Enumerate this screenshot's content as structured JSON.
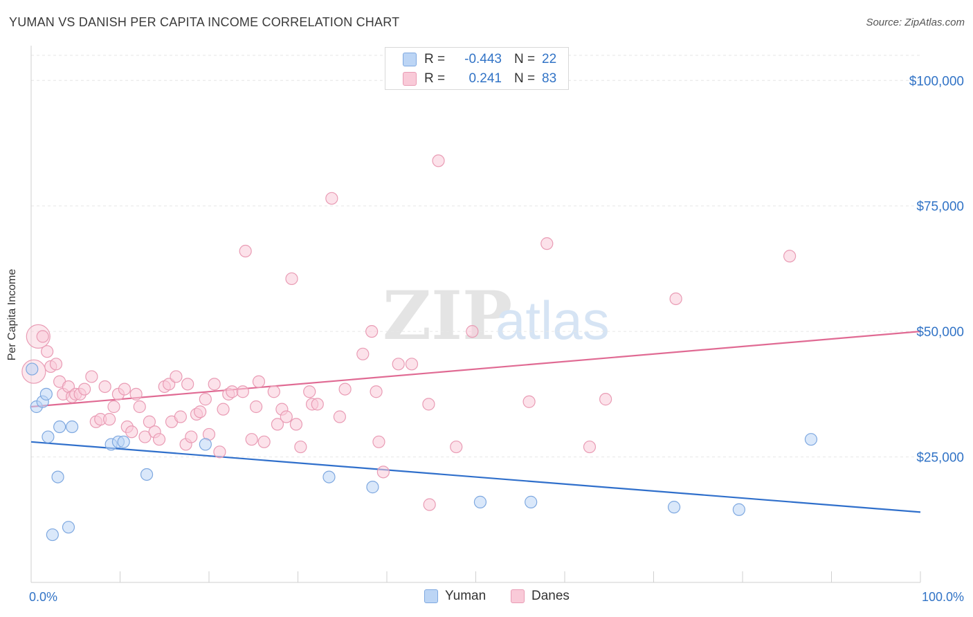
{
  "title": "YUMAN VS DANISH PER CAPITA INCOME CORRELATION CHART",
  "source": "Source: ZipAtlas.com",
  "watermark": {
    "zip": "ZIP",
    "atlas": "atlas"
  },
  "stats": [
    {
      "r_label": "R =",
      "r_value": "-0.443",
      "n_label": "N =",
      "n_value": "22",
      "color": "#bcd5f5"
    },
    {
      "r_label": "R =",
      "r_value": "0.241",
      "n_label": "N =",
      "n_value": "83",
      "color": "#f9cad8"
    }
  ],
  "legend": [
    {
      "label": "Yuman",
      "color": "#bcd5f5"
    },
    {
      "label": "Danes",
      "color": "#f9cad8"
    }
  ],
  "chart_data": {
    "type": "scatter",
    "title": "YUMAN VS DANISH PER CAPITA INCOME CORRELATION CHART",
    "xlabel": "",
    "ylabel": "Per Capita Income",
    "xlim": [
      0,
      100
    ],
    "ylim": [
      0,
      105000
    ],
    "x_tick_labels": [
      "0.0%",
      "100.0%"
    ],
    "y_ticks": [
      {
        "value": 25000,
        "label": "$25,000"
      },
      {
        "value": 50000,
        "label": "$50,000"
      },
      {
        "value": 75000,
        "label": "$75,000"
      },
      {
        "value": 100000,
        "label": "$100,000"
      }
    ],
    "grid": true,
    "legend_position": "bottom-center",
    "series": [
      {
        "name": "Yuman",
        "color": "#7ea8e0",
        "fill": "#bcd5f5",
        "trend": {
          "x": [
            0,
            100
          ],
          "y": [
            28000,
            14000
          ],
          "color": "#2f6fcb"
        },
        "points": [
          {
            "x": 0.1,
            "y": 42500
          },
          {
            "x": 0.6,
            "y": 35000
          },
          {
            "x": 1.3,
            "y": 36000
          },
          {
            "x": 1.7,
            "y": 37500
          },
          {
            "x": 1.9,
            "y": 29000
          },
          {
            "x": 2.4,
            "y": 9500
          },
          {
            "x": 3.0,
            "y": 21000
          },
          {
            "x": 3.2,
            "y": 31000
          },
          {
            "x": 4.2,
            "y": 11000
          },
          {
            "x": 4.6,
            "y": 31000
          },
          {
            "x": 9.0,
            "y": 27500
          },
          {
            "x": 9.8,
            "y": 28000
          },
          {
            "x": 10.4,
            "y": 28000
          },
          {
            "x": 13.0,
            "y": 21500
          },
          {
            "x": 19.6,
            "y": 27500
          },
          {
            "x": 33.5,
            "y": 21000
          },
          {
            "x": 38.4,
            "y": 19000
          },
          {
            "x": 50.5,
            "y": 16000
          },
          {
            "x": 56.2,
            "y": 16000
          },
          {
            "x": 72.3,
            "y": 15000
          },
          {
            "x": 79.6,
            "y": 14500
          },
          {
            "x": 87.7,
            "y": 28500
          }
        ]
      },
      {
        "name": "Danes",
        "color": "#e99bb4",
        "fill": "#f9cad8",
        "trend": {
          "x": [
            0,
            100
          ],
          "y": [
            35000,
            50000
          ],
          "color": "#e06a93"
        },
        "points": [
          {
            "x": 0.3,
            "y": 42000,
            "big": true
          },
          {
            "x": 0.8,
            "y": 49000,
            "big": true
          },
          {
            "x": 1.3,
            "y": 49000
          },
          {
            "x": 1.8,
            "y": 46000
          },
          {
            "x": 2.2,
            "y": 43000
          },
          {
            "x": 2.8,
            "y": 43500
          },
          {
            "x": 3.2,
            "y": 40000
          },
          {
            "x": 3.6,
            "y": 37500
          },
          {
            "x": 4.2,
            "y": 39000
          },
          {
            "x": 4.6,
            "y": 37000
          },
          {
            "x": 5.0,
            "y": 37500
          },
          {
            "x": 5.5,
            "y": 37500
          },
          {
            "x": 6.0,
            "y": 38500
          },
          {
            "x": 6.8,
            "y": 41000
          },
          {
            "x": 7.3,
            "y": 32000
          },
          {
            "x": 7.8,
            "y": 32500
          },
          {
            "x": 8.3,
            "y": 39000
          },
          {
            "x": 8.8,
            "y": 32500
          },
          {
            "x": 9.3,
            "y": 35000
          },
          {
            "x": 9.8,
            "y": 37500
          },
          {
            "x": 10.5,
            "y": 38500
          },
          {
            "x": 10.8,
            "y": 31000
          },
          {
            "x": 11.3,
            "y": 30000
          },
          {
            "x": 11.8,
            "y": 37500
          },
          {
            "x": 12.2,
            "y": 35000
          },
          {
            "x": 12.8,
            "y": 29000
          },
          {
            "x": 13.3,
            "y": 32000
          },
          {
            "x": 13.9,
            "y": 30000
          },
          {
            "x": 14.4,
            "y": 28500
          },
          {
            "x": 15.0,
            "y": 39000
          },
          {
            "x": 15.5,
            "y": 39500
          },
          {
            "x": 15.8,
            "y": 32000
          },
          {
            "x": 16.3,
            "y": 41000
          },
          {
            "x": 16.8,
            "y": 33000
          },
          {
            "x": 17.4,
            "y": 27500
          },
          {
            "x": 17.6,
            "y": 39500
          },
          {
            "x": 18.0,
            "y": 29000
          },
          {
            "x": 18.6,
            "y": 33500
          },
          {
            "x": 19.0,
            "y": 34000
          },
          {
            "x": 19.6,
            "y": 36500
          },
          {
            "x": 20.0,
            "y": 29500
          },
          {
            "x": 20.6,
            "y": 39500
          },
          {
            "x": 21.2,
            "y": 26000
          },
          {
            "x": 21.6,
            "y": 34500
          },
          {
            "x": 22.2,
            "y": 37500
          },
          {
            "x": 22.6,
            "y": 38000
          },
          {
            "x": 23.8,
            "y": 38000
          },
          {
            "x": 24.1,
            "y": 66000
          },
          {
            "x": 24.8,
            "y": 28500
          },
          {
            "x": 25.3,
            "y": 35000
          },
          {
            "x": 25.6,
            "y": 40000
          },
          {
            "x": 26.2,
            "y": 28000
          },
          {
            "x": 27.3,
            "y": 38000
          },
          {
            "x": 27.7,
            "y": 31500
          },
          {
            "x": 28.2,
            "y": 34500
          },
          {
            "x": 28.7,
            "y": 33000
          },
          {
            "x": 29.3,
            "y": 60500
          },
          {
            "x": 29.8,
            "y": 31500
          },
          {
            "x": 30.3,
            "y": 27000
          },
          {
            "x": 31.3,
            "y": 38000
          },
          {
            "x": 31.6,
            "y": 35500
          },
          {
            "x": 32.2,
            "y": 35500
          },
          {
            "x": 33.8,
            "y": 76500
          },
          {
            "x": 34.7,
            "y": 33000
          },
          {
            "x": 35.3,
            "y": 38500
          },
          {
            "x": 37.3,
            "y": 45500
          },
          {
            "x": 38.3,
            "y": 50000
          },
          {
            "x": 38.8,
            "y": 38000
          },
          {
            "x": 39.1,
            "y": 28000
          },
          {
            "x": 39.6,
            "y": 22000
          },
          {
            "x": 41.3,
            "y": 43500
          },
          {
            "x": 42.8,
            "y": 43500
          },
          {
            "x": 44.7,
            "y": 35500
          },
          {
            "x": 44.8,
            "y": 15500
          },
          {
            "x": 45.8,
            "y": 84000
          },
          {
            "x": 47.8,
            "y": 27000
          },
          {
            "x": 49.6,
            "y": 50000
          },
          {
            "x": 56.0,
            "y": 36000
          },
          {
            "x": 58.0,
            "y": 67500
          },
          {
            "x": 62.8,
            "y": 27000
          },
          {
            "x": 64.6,
            "y": 36500
          },
          {
            "x": 72.5,
            "y": 56500
          },
          {
            "x": 85.3,
            "y": 65000
          }
        ]
      }
    ]
  }
}
